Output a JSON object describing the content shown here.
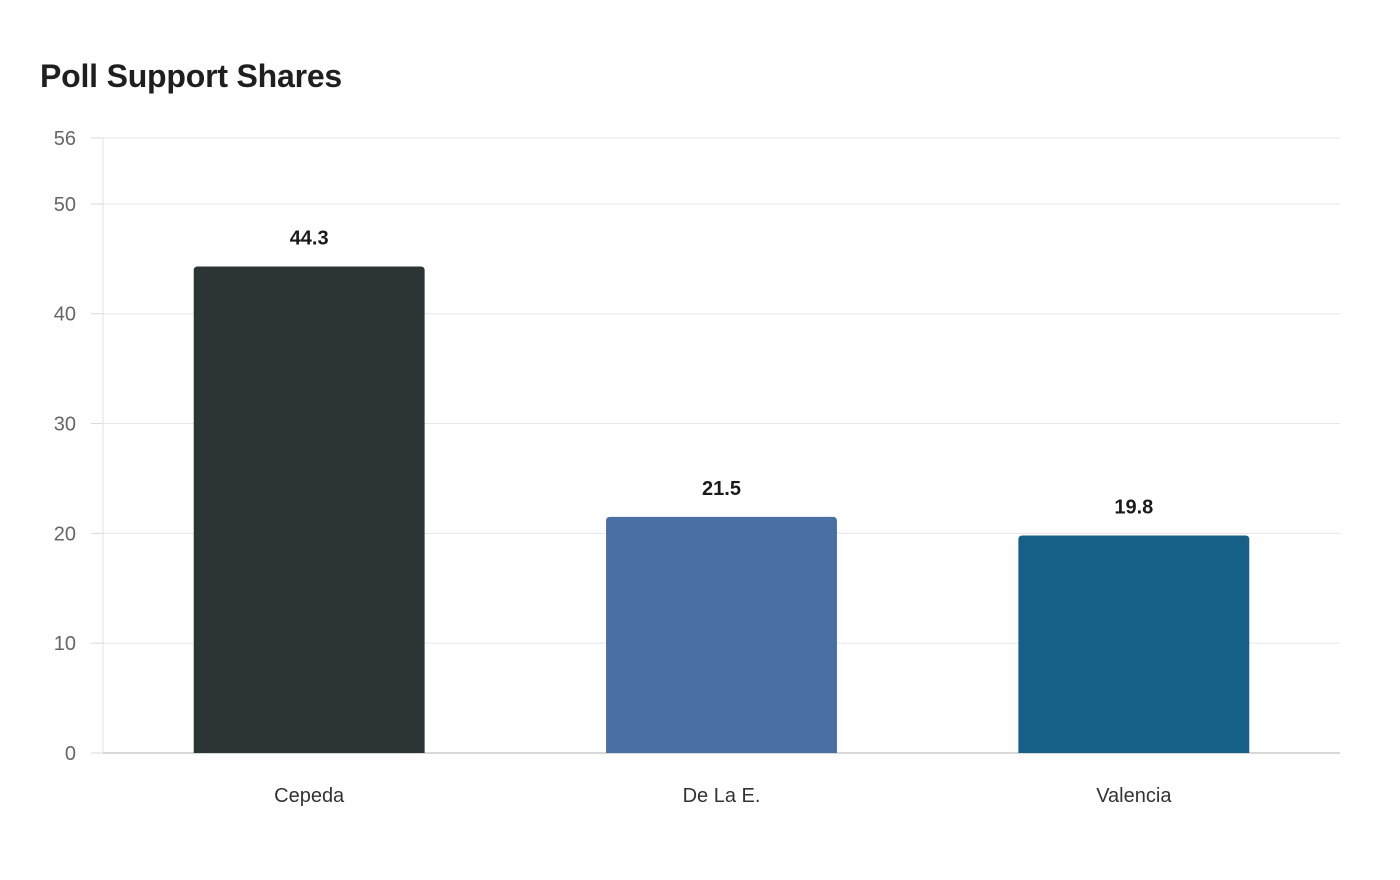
{
  "chart_data": {
    "type": "bar",
    "title": "Poll Support Shares",
    "xlabel": "",
    "ylabel": "",
    "categories": [
      "Cepeda",
      "De La E.",
      "Valencia"
    ],
    "values": [
      44.3,
      21.5,
      19.8
    ],
    "value_labels": [
      "44.3",
      "21.5",
      "19.8"
    ],
    "colors": [
      "#2d3436",
      "#4a6fa5",
      "#166088"
    ],
    "ylim": [
      0,
      56
    ],
    "yticks": [
      0,
      10,
      20,
      30,
      40,
      50,
      56
    ],
    "grid": true,
    "legend": "none"
  }
}
